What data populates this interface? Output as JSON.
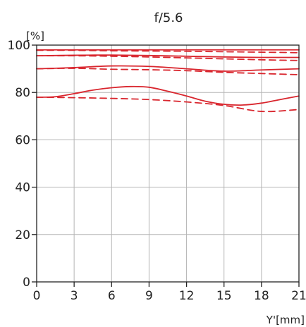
{
  "chart_data": {
    "type": "line",
    "title": "f/5.6",
    "xlabel": "Y'[mm]",
    "ylabel": "[%]",
    "xlim": [
      0,
      21
    ],
    "ylim": [
      0,
      100
    ],
    "xticks": [
      0,
      3,
      6,
      9,
      12,
      15,
      18,
      21
    ],
    "yticks": [
      0,
      20,
      40,
      60,
      80,
      100
    ],
    "grid": true,
    "colors": {
      "series": "#d9262e",
      "grid": "#b5b5b5",
      "axis": "#222222"
    },
    "series": [
      {
        "style": "solid",
        "x": [
          0,
          3,
          6,
          9,
          12,
          15,
          18,
          21
        ],
        "y": [
          98.0,
          98.0,
          98.0,
          98.0,
          98.0,
          98.0,
          98.0,
          98.0
        ]
      },
      {
        "style": "dashed",
        "x": [
          0,
          3,
          6,
          9,
          12,
          15,
          18,
          21
        ],
        "y": [
          97.8,
          97.8,
          97.6,
          97.5,
          97.4,
          97.2,
          97.0,
          96.8
        ]
      },
      {
        "style": "solid",
        "x": [
          0,
          3,
          6,
          9,
          12,
          15,
          18,
          21
        ],
        "y": [
          95.5,
          95.7,
          95.8,
          95.6,
          95.3,
          95.0,
          94.8,
          94.8
        ]
      },
      {
        "style": "dashed",
        "x": [
          0,
          3,
          6,
          9,
          12,
          15,
          18,
          21
        ],
        "y": [
          95.5,
          95.5,
          95.3,
          95.0,
          94.6,
          94.2,
          93.8,
          93.5
        ]
      },
      {
        "style": "solid",
        "x": [
          0,
          3,
          6,
          9,
          12,
          15,
          18,
          21
        ],
        "y": [
          90.0,
          90.5,
          91.2,
          91.0,
          90.0,
          89.0,
          89.5,
          90.0
        ]
      },
      {
        "style": "dashed",
        "x": [
          0,
          3,
          6,
          9,
          12,
          15,
          18,
          21
        ],
        "y": [
          90.0,
          90.2,
          89.8,
          89.6,
          89.2,
          88.5,
          88.0,
          87.5
        ]
      },
      {
        "style": "solid",
        "x": [
          0,
          1.5,
          3,
          4.5,
          6,
          7.5,
          9,
          10.5,
          12,
          13.5,
          15,
          16.5,
          18,
          19.5,
          21
        ],
        "y": [
          78.0,
          78.2,
          79.5,
          81.0,
          82.0,
          82.5,
          82.2,
          80.5,
          78.5,
          76.3,
          75.0,
          74.7,
          75.5,
          77.0,
          78.5
        ]
      },
      {
        "style": "dashed",
        "x": [
          0,
          3,
          6,
          9,
          12,
          15,
          18,
          21
        ],
        "y": [
          78.0,
          77.8,
          77.5,
          77.0,
          76.0,
          74.5,
          72.0,
          72.8
        ]
      }
    ]
  }
}
